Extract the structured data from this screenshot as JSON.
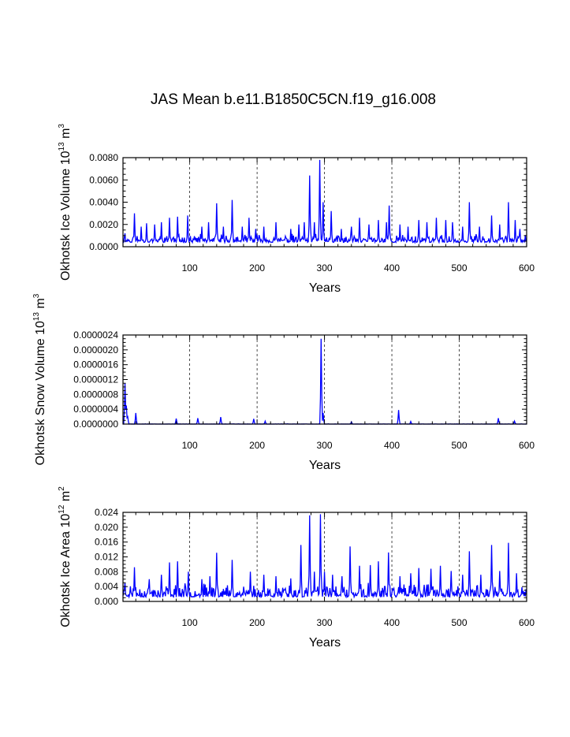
{
  "figure": {
    "title": "JAS Mean b.e11.B1850C5CN.f19_g16.008"
  },
  "chart_data": [
    {
      "type": "line",
      "ylabel": "Okhotsk Ice Volume 10^13 m^3",
      "ylabel_parts": {
        "main": "Okhotsk Ice Volume 10",
        "sup1": "13",
        "mid": " m",
        "sup2": "3"
      },
      "xlabel": "Years",
      "xlim": [
        1,
        600
      ],
      "ylim": [
        0,
        0.008
      ],
      "x_ticks": [
        "100",
        "200",
        "300",
        "400",
        "500",
        "600"
      ],
      "y_ticks": [
        "0.0000",
        "0.0020",
        "0.0040",
        "0.0060",
        "0.0080"
      ],
      "vgrid_dashed": [
        100,
        200,
        300,
        400,
        500
      ],
      "line_color": "#0000ff",
      "baseline": 0.00045,
      "noise": 0.00045,
      "seed": 11,
      "spikes": [
        [
          4,
          0.0012
        ],
        [
          18,
          0.003
        ],
        [
          28,
          0.0018
        ],
        [
          36,
          0.0021
        ],
        [
          48,
          0.002
        ],
        [
          58,
          0.0022
        ],
        [
          70,
          0.0026
        ],
        [
          82,
          0.0027
        ],
        [
          97,
          0.0028
        ],
        [
          118,
          0.0018
        ],
        [
          128,
          0.0022
        ],
        [
          140,
          0.0039
        ],
        [
          150,
          0.0018
        ],
        [
          163,
          0.0042
        ],
        [
          178,
          0.0018
        ],
        [
          188,
          0.0026
        ],
        [
          198,
          0.0016
        ],
        [
          210,
          0.0018
        ],
        [
          228,
          0.0022
        ],
        [
          250,
          0.0016
        ],
        [
          262,
          0.002
        ],
        [
          270,
          0.0022
        ],
        [
          278,
          0.0064
        ],
        [
          285,
          0.0022
        ],
        [
          293,
          0.0078
        ],
        [
          298,
          0.004
        ],
        [
          310,
          0.0032
        ],
        [
          325,
          0.0016
        ],
        [
          340,
          0.0018
        ],
        [
          352,
          0.0026
        ],
        [
          366,
          0.002
        ],
        [
          380,
          0.0024
        ],
        [
          392,
          0.0022
        ],
        [
          396,
          0.0037
        ],
        [
          412,
          0.002
        ],
        [
          424,
          0.0018
        ],
        [
          440,
          0.0024
        ],
        [
          452,
          0.0022
        ],
        [
          466,
          0.0026
        ],
        [
          480,
          0.0024
        ],
        [
          490,
          0.0022
        ],
        [
          505,
          0.0018
        ],
        [
          515,
          0.004
        ],
        [
          530,
          0.0018
        ],
        [
          548,
          0.0028
        ],
        [
          560,
          0.002
        ],
        [
          573,
          0.004
        ],
        [
          583,
          0.0024
        ],
        [
          590,
          0.0016
        ]
      ]
    },
    {
      "type": "line",
      "ylabel": "Okhotsk Snow Volume 10^13 m^3",
      "ylabel_parts": {
        "main": "Okhotsk Snow Volume 10",
        "sup1": "13",
        "mid": " m",
        "sup2": "3"
      },
      "xlabel": "Years",
      "xlim": [
        1,
        600
      ],
      "ylim": [
        0,
        2.4e-06
      ],
      "x_ticks": [
        "100",
        "200",
        "300",
        "400",
        "500",
        "600"
      ],
      "y_ticks": [
        "0.0000000",
        "0.0000004",
        "0.0000008",
        "0.0000012",
        "0.0000016",
        "0.0000020",
        "0.0000024"
      ],
      "vgrid_dashed": [
        100,
        200,
        300,
        400,
        500
      ],
      "line_color": "#0000ff",
      "baseline": 0,
      "noise": 4e-09,
      "seed": 5,
      "spikes": [
        [
          4,
          1.1e-06
        ],
        [
          6,
          5e-07
        ],
        [
          8,
          2e-07
        ],
        [
          20,
          3e-07
        ],
        [
          80,
          1.5e-07
        ],
        [
          112,
          1.6e-07
        ],
        [
          146,
          1.9e-07
        ],
        [
          195,
          1.4e-07
        ],
        [
          212,
          8e-08
        ],
        [
          295,
          2.3e-06
        ],
        [
          298,
          3e-07
        ],
        [
          340,
          6e-08
        ],
        [
          410,
          3.8e-07
        ],
        [
          428,
          7e-08
        ],
        [
          558,
          1.6e-07
        ],
        [
          582,
          8e-08
        ]
      ]
    },
    {
      "type": "line",
      "ylabel": "Okhotsk Ice Area 10^12 m^2",
      "ylabel_parts": {
        "main": "Okhotsk Ice Area 10",
        "sup1": "12",
        "mid": " m",
        "sup2": "2"
      },
      "xlabel": "Years",
      "xlim": [
        1,
        600
      ],
      "ylim": [
        0,
        0.024
      ],
      "x_ticks": [
        "100",
        "200",
        "300",
        "400",
        "500",
        "600"
      ],
      "y_ticks": [
        "0.000",
        "0.004",
        "0.008",
        "0.012",
        "0.016",
        "0.020",
        "0.024"
      ],
      "vgrid_dashed": [
        100,
        200,
        300,
        400,
        500
      ],
      "line_color": "#0000ff",
      "baseline": 0.0015,
      "noise": 0.0022,
      "seed": 23,
      "spikes": [
        [
          4,
          0.005
        ],
        [
          18,
          0.0092
        ],
        [
          40,
          0.006
        ],
        [
          58,
          0.0072
        ],
        [
          70,
          0.0105
        ],
        [
          82,
          0.0108
        ],
        [
          98,
          0.008
        ],
        [
          118,
          0.006
        ],
        [
          130,
          0.0068
        ],
        [
          140,
          0.0131
        ],
        [
          163,
          0.0112
        ],
        [
          190,
          0.008
        ],
        [
          210,
          0.0072
        ],
        [
          228,
          0.0068
        ],
        [
          250,
          0.0062
        ],
        [
          265,
          0.0152
        ],
        [
          278,
          0.0232
        ],
        [
          285,
          0.008
        ],
        [
          294,
          0.0235
        ],
        [
          300,
          0.008
        ],
        [
          312,
          0.0072
        ],
        [
          326,
          0.0068
        ],
        [
          338,
          0.0148
        ],
        [
          352,
          0.0096
        ],
        [
          368,
          0.0098
        ],
        [
          380,
          0.0108
        ],
        [
          395,
          0.0132
        ],
        [
          412,
          0.0068
        ],
        [
          428,
          0.0076
        ],
        [
          440,
          0.009
        ],
        [
          458,
          0.0088
        ],
        [
          472,
          0.0096
        ],
        [
          488,
          0.0082
        ],
        [
          505,
          0.0072
        ],
        [
          515,
          0.0135
        ],
        [
          532,
          0.0072
        ],
        [
          548,
          0.0152
        ],
        [
          560,
          0.0082
        ],
        [
          573,
          0.0158
        ],
        [
          585,
          0.0076
        ]
      ]
    }
  ]
}
